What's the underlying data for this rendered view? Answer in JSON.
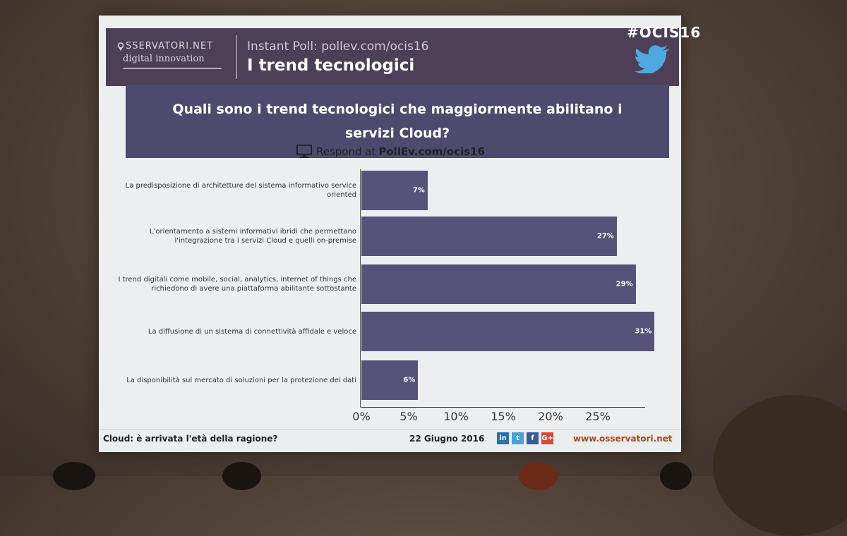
{
  "header": {
    "logo_top": "SSERVATORI.NET",
    "logo_bottom": "digital innovation",
    "subtitle": "Instant Poll: pollev.com/ocis16",
    "title": "I trend tecnologici",
    "hashtag": "#OCIS16",
    "icons": [
      "location-pin-icon",
      "twitter-bird-icon"
    ]
  },
  "question": "Quali sono i trend tecnologici che maggiormente abilitano i servizi Cloud?",
  "respond": {
    "prefix": "Respond at",
    "url": "PollEv.com/ocis16",
    "icon": "monitor-icon"
  },
  "chart_data": {
    "type": "bar",
    "orientation": "horizontal",
    "categories": [
      "La predisposizione di architetture del sistema informativo service oriented",
      "L'orientamento a sistemi informativi ibridi che permettano l'integrazione tra i servizi Cloud e quelli on-premise",
      "I trend digitali come mobile, social, analytics, internet of things che richiedono di avere una piattaforma abilitante sottostante",
      "La diffusione di un sistema di connettività affidale e veloce",
      "La disponibilità sul mercato di soluzioni per la protezione dei dati"
    ],
    "values": [
      7,
      27,
      29,
      31,
      6
    ],
    "value_labels": [
      "7%",
      "27%",
      "29%",
      "31%",
      "6%"
    ],
    "xticks": [
      "0%",
      "5%",
      "10%",
      "15%",
      "20%",
      "25%"
    ],
    "xlim": [
      0,
      30
    ],
    "bar_color": "#56537a"
  },
  "footer": {
    "left": "Cloud: è arrivata l'età della ragione?",
    "date": "22 Giugno 2016",
    "socials": [
      {
        "icon": "linkedin-icon",
        "text": "in",
        "color": "#2e6ea6"
      },
      {
        "icon": "twitter-icon",
        "text": "t",
        "color": "#4aa0d8"
      },
      {
        "icon": "facebook-icon",
        "text": "f",
        "color": "#3b5998"
      },
      {
        "icon": "google-plus-icon",
        "text": "G+",
        "color": "#d8493b"
      }
    ],
    "site": "www.osservatori.net"
  }
}
